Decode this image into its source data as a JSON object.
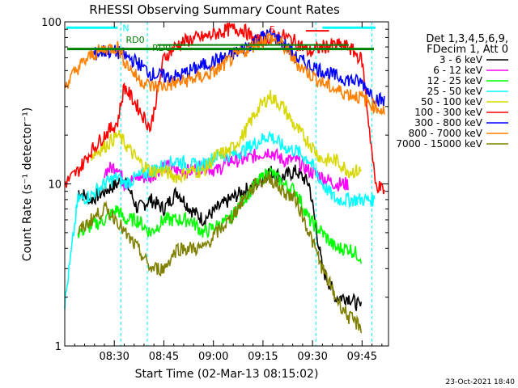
{
  "chart_data": {
    "type": "line",
    "title": "RHESSI Observing Summary Count Rates",
    "xlabel": "Start Time (02-Mar-13 08:15:02)",
    "ylabel": "Count Rate (s⁻¹ detector⁻¹)",
    "yscale": "log",
    "ylim": [
      1,
      100
    ],
    "xlim_minutes": [
      0,
      98
    ],
    "x_ticks": [
      {
        "label": "08:30",
        "minute": 15
      },
      {
        "label": "08:45",
        "minute": 30
      },
      {
        "label": "09:00",
        "minute": 45
      },
      {
        "label": "09:15",
        "minute": 60
      },
      {
        "label": "09:30",
        "minute": 75
      },
      {
        "label": "09:45",
        "minute": 90
      }
    ],
    "y_ticks": [
      {
        "label": "1",
        "value": 1
      },
      {
        "label": "10",
        "value": 10
      },
      {
        "label": "100",
        "value": 100
      }
    ],
    "grid": false,
    "legend_placement": "right",
    "legend_header": [
      "Det 1,3,4,5,6,9,",
      "FDecim 1, Att 0"
    ],
    "footer_date": "23-Oct-2021 18:40",
    "annotations": [
      {
        "label": "N",
        "color": "#00ffff"
      },
      {
        "label": "RD0",
        "color": "#008000"
      },
      {
        "label": "RD0",
        "color": "#008000"
      },
      {
        "label": "F",
        "color": "#ff0000"
      }
    ],
    "minute": [
      0,
      4,
      8,
      12,
      16,
      18,
      22,
      26,
      30,
      34,
      38,
      42,
      46,
      50,
      54,
      58,
      62,
      66,
      70,
      74,
      78,
      82,
      86,
      90,
      94,
      97
    ],
    "series": [
      {
        "name": "3 - 6 keV",
        "color": "#000000",
        "start": 3,
        "values": [
          null,
          9,
          8,
          9,
          10,
          11,
          7,
          8,
          7,
          9,
          7,
          6,
          7,
          8,
          9,
          10,
          12,
          11,
          12,
          10,
          3,
          2,
          2,
          1.7,
          null,
          null
        ]
      },
      {
        "name": "6 - 12 keV",
        "color": "#ff00ff",
        "start": 10,
        "values": [
          null,
          null,
          null,
          12,
          13,
          10,
          11,
          11,
          13,
          12,
          12,
          13,
          12,
          14,
          14,
          15,
          16,
          14,
          14,
          12,
          11,
          10,
          10,
          null,
          null,
          null
        ]
      },
      {
        "name": "12 - 25 keV",
        "color": "#00ff00",
        "start": 4,
        "values": [
          null,
          5,
          5.5,
          6,
          7,
          6,
          6,
          5,
          6,
          6,
          6,
          5,
          5.5,
          6,
          8,
          10,
          12,
          10,
          9,
          6,
          5,
          4,
          4,
          3.5,
          null,
          null
        ]
      },
      {
        "name": "25 - 50 keV",
        "color": "#00ffff",
        "start": 0,
        "values": [
          1.8,
          8,
          8.5,
          10,
          11,
          10,
          11,
          12,
          13,
          14,
          13,
          13,
          15,
          15,
          16,
          18,
          20,
          17,
          16,
          14,
          10,
          8,
          8,
          8,
          8,
          null
        ]
      },
      {
        "name": "50 - 100 keV",
        "color": "#d8d800",
        "start": 8,
        "values": [
          null,
          null,
          15,
          17,
          20,
          18,
          14,
          12,
          12,
          11,
          12,
          12,
          15,
          16,
          20,
          28,
          35,
          30,
          22,
          18,
          14,
          14,
          12,
          12,
          null,
          null
        ]
      },
      {
        "name": "100 - 300 keV",
        "color": "#ff0000",
        "start": 0,
        "values": [
          10,
          12,
          16,
          20,
          24,
          40,
          30,
          22,
          60,
          72,
          78,
          80,
          85,
          90,
          90,
          75,
          80,
          82,
          75,
          65,
          70,
          72,
          70,
          58,
          10,
          9
        ]
      },
      {
        "name": "300 - 800 keV",
        "color": "#0000ff",
        "start": 6,
        "values": [
          null,
          null,
          62,
          66,
          65,
          62,
          56,
          48,
          46,
          46,
          50,
          54,
          58,
          62,
          68,
          78,
          84,
          75,
          60,
          54,
          50,
          46,
          44,
          42,
          34,
          32
        ]
      },
      {
        "name": "800 - 7000 keV",
        "color": "#ff8000",
        "start": 0,
        "values": [
          40,
          52,
          62,
          68,
          70,
          58,
          45,
          40,
          40,
          42,
          44,
          46,
          50,
          58,
          65,
          74,
          80,
          72,
          56,
          48,
          42,
          38,
          36,
          34,
          30,
          28
        ]
      },
      {
        "name": "7000 - 15000 keV",
        "color": "#808000",
        "start": 2,
        "values": [
          null,
          5,
          6,
          7,
          6,
          5,
          4,
          3,
          3,
          4,
          4,
          4,
          5,
          6,
          8,
          10,
          11,
          9,
          8,
          5,
          3,
          2,
          1.5,
          1.3,
          null,
          null
        ]
      }
    ],
    "rd0_level": 68
  }
}
